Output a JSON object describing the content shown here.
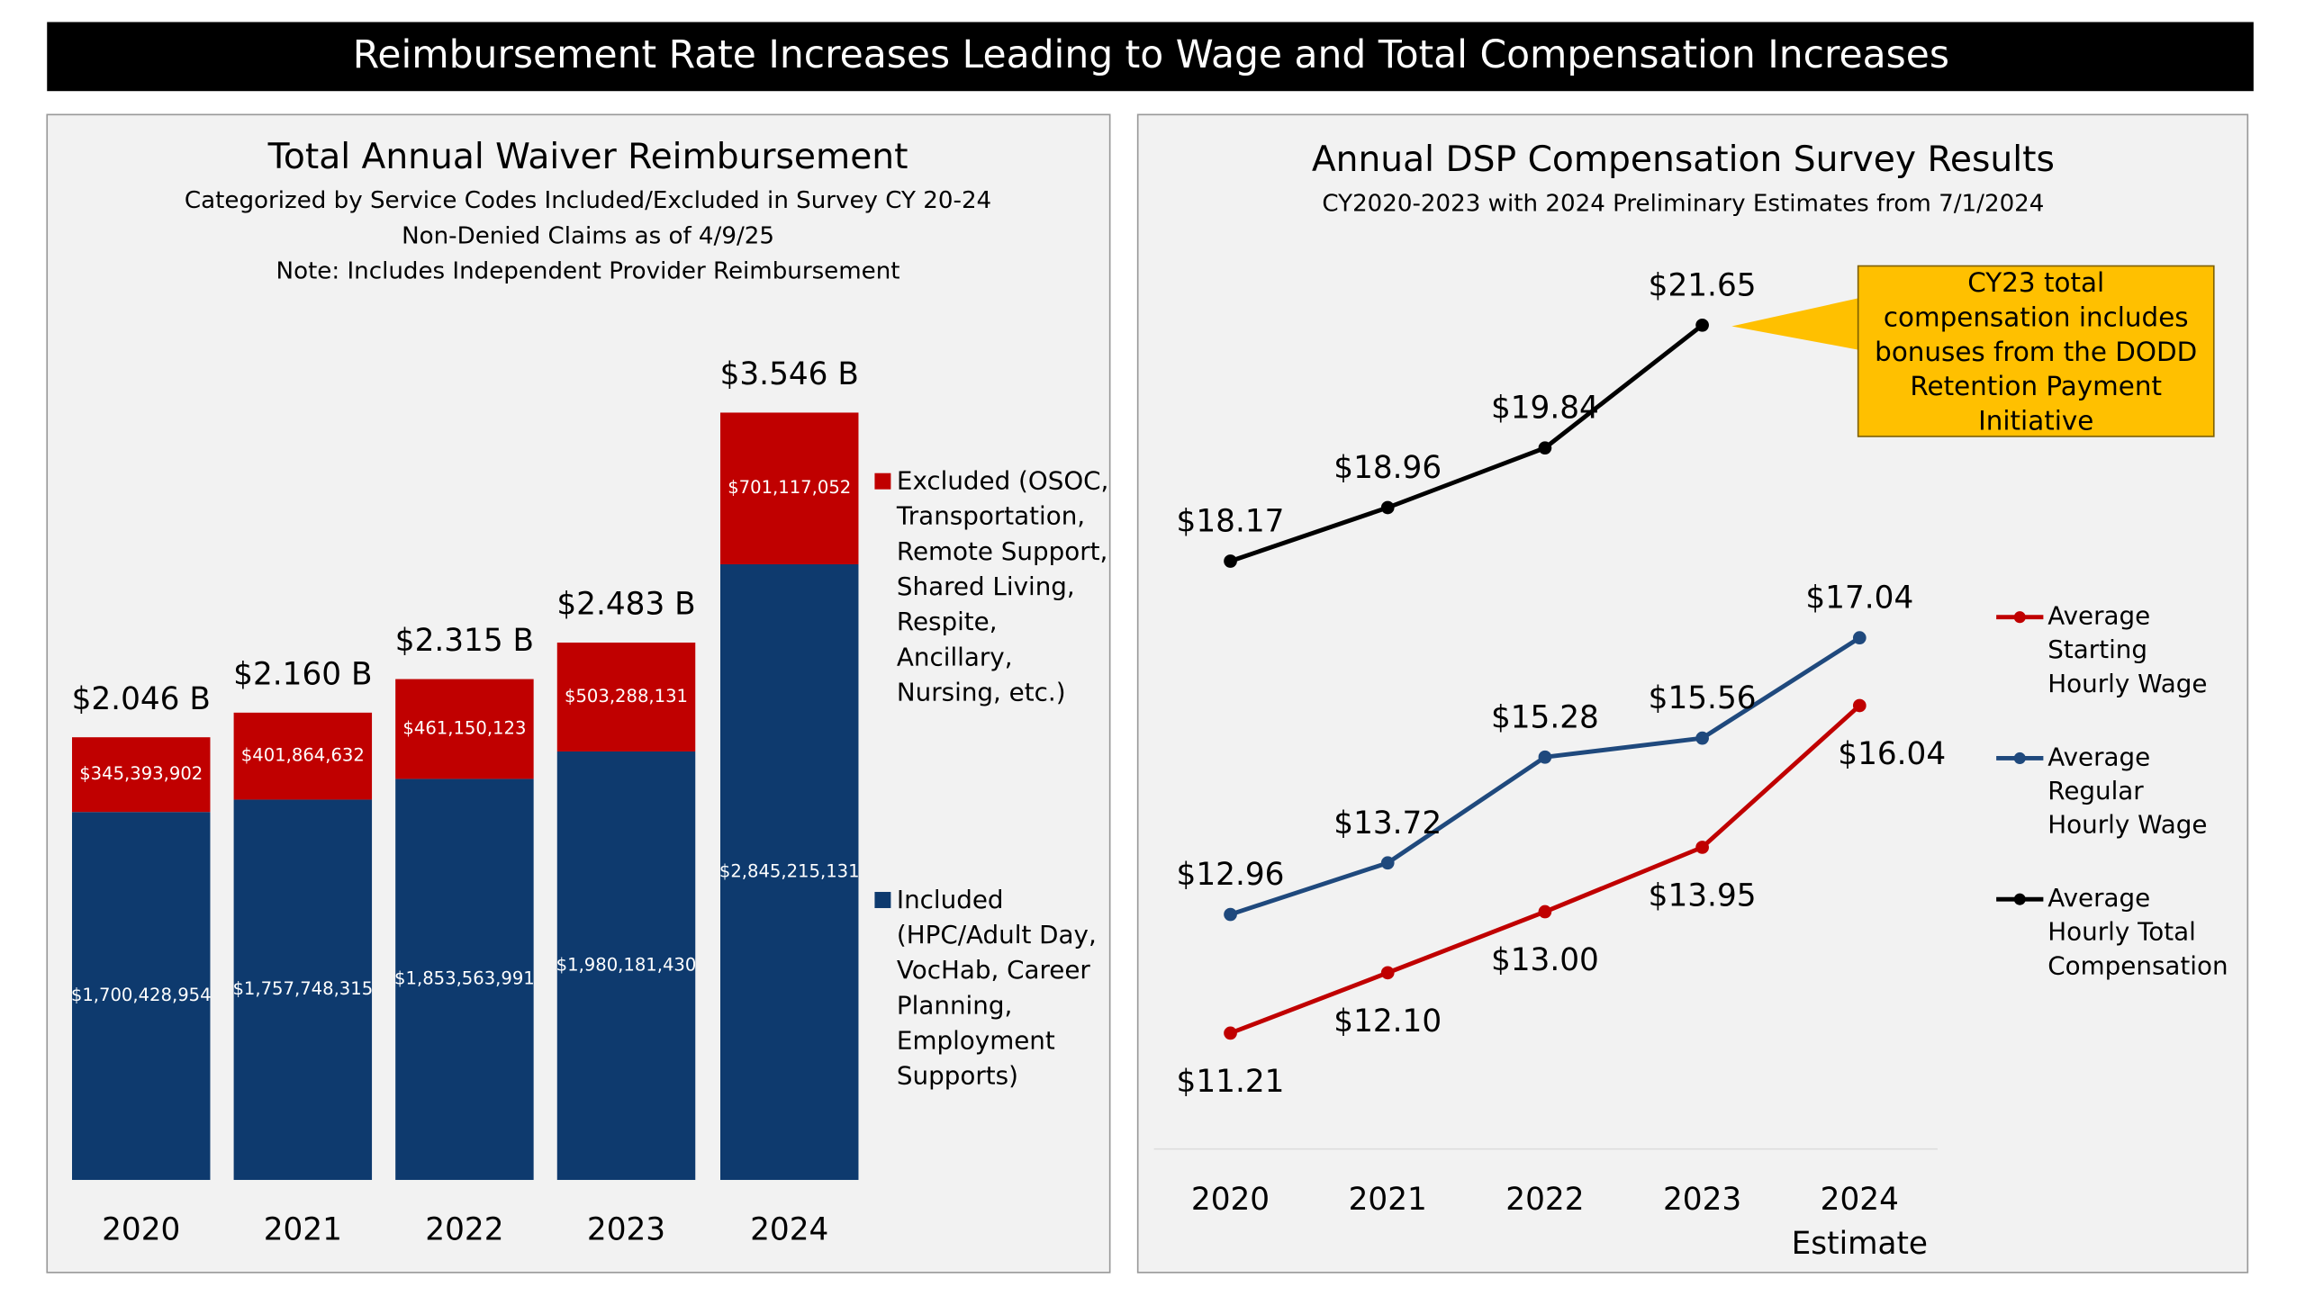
{
  "banner": "Reimbursement Rate Increases Leading to Wage and Total Compensation Increases",
  "chart_data": [
    {
      "type": "bar",
      "stacked": true,
      "title": "Total Annual Waiver Reimbursement",
      "subtitle": [
        "Categorized by Service Codes Included/Excluded in Survey CY 20-24",
        "Non-Denied Claims as of 4/9/25",
        "Note: Includes Independent Provider Reimbursement"
      ],
      "categories": [
        "2020",
        "2021",
        "2022",
        "2023",
        "2024"
      ],
      "ylim": [
        0,
        4000000000
      ],
      "series": [
        {
          "name": "Included (HPC/Adult Day, VocHab, Career Planning, Employment Supports)",
          "color": "#0e3a6e",
          "values": [
            1700428954,
            1757748315,
            1853563991,
            1980181430,
            2845215131
          ],
          "value_labels": [
            "$1,700,428,954",
            "$1,757,748,315",
            "$1,853,563,991",
            "$1,980,181,430",
            "$2,845,215,131"
          ]
        },
        {
          "name": "Excluded (OSOC, Transportation, Remote Support, Shared Living, Respite, Ancillary, Nursing, etc.)",
          "color": "#c00000",
          "values": [
            345393902,
            401864632,
            461150123,
            503288131,
            701117052
          ],
          "value_labels": [
            "$345,393,902",
            "$401,864,632",
            "$461,150,123",
            "$503,288,131",
            "$701,117,052"
          ]
        }
      ],
      "total_labels": [
        "$2.046 B",
        "$2.160 B",
        "$2.315 B",
        "$2.483 B",
        "$3.546 B"
      ]
    },
    {
      "type": "line",
      "title": "Annual DSP Compensation Survey Results",
      "subtitle": "CY2020-2023 with 2024 Preliminary Estimates from 7/1/2024",
      "categories": [
        "2020",
        "2021",
        "2022",
        "2023",
        "2024 Estimate"
      ],
      "ylim": [
        9.5,
        23
      ],
      "series": [
        {
          "name": "Average Starting Hourly Wage",
          "color": "#c00000",
          "values": [
            11.21,
            12.1,
            13.0,
            13.95,
            16.04
          ],
          "value_labels": [
            "$11.21",
            "$12.10",
            "$13.00",
            "$13.95",
            "$16.04"
          ]
        },
        {
          "name": "Average Regular Hourly Wage",
          "color": "#1f497d",
          "values": [
            12.96,
            13.72,
            15.28,
            15.56,
            17.04
          ],
          "value_labels": [
            "$12.96",
            "$13.72",
            "$15.28",
            "$15.56",
            "$17.04"
          ]
        },
        {
          "name": "Average Hourly Total Compensation",
          "color": "#000000",
          "values": [
            18.17,
            18.96,
            19.84,
            21.65,
            null
          ],
          "value_labels": [
            "$18.17",
            "$18.96",
            "$19.84",
            "$21.65",
            null
          ]
        }
      ],
      "annotation": "CY23 total compensation includes bonuses from the DODD Retention Payment Initiative"
    }
  ]
}
